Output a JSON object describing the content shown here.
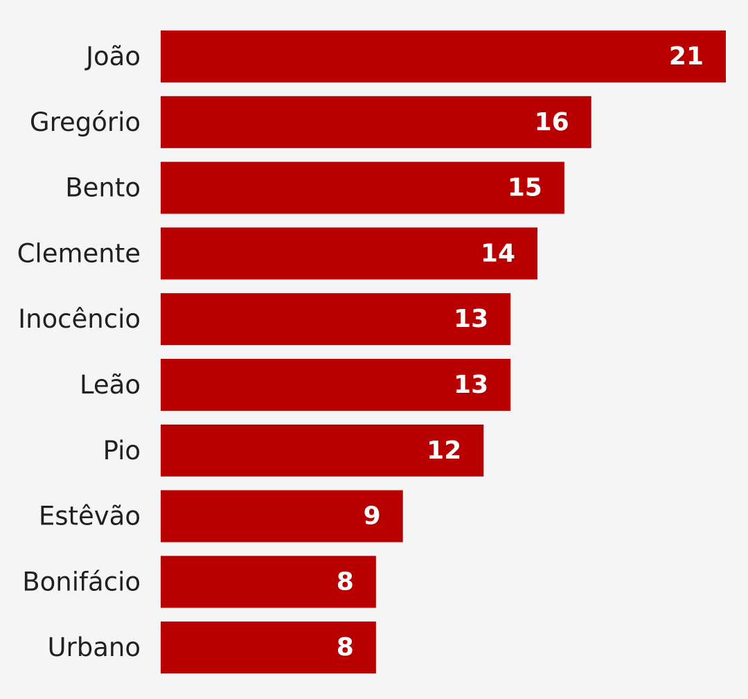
{
  "chart_data": {
    "type": "bar",
    "orientation": "horizontal",
    "categories": [
      "João",
      "Gregório",
      "Bento",
      "Clemente",
      "Inocêncio",
      "Leão",
      "Pio",
      "Estêvão",
      "Bonifácio",
      "Urbano"
    ],
    "values": [
      21,
      16,
      15,
      14,
      13,
      13,
      12,
      9,
      8,
      8
    ],
    "color": "#b80000",
    "data_labels": true
  }
}
